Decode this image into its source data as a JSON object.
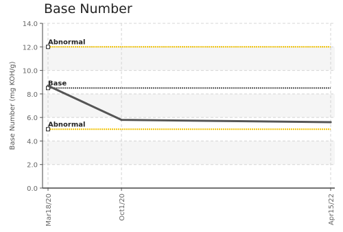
{
  "chart_data": {
    "type": "line",
    "title": "Base Number",
    "ylabel": "Base Number (mg KOH/g)",
    "xlabel": "",
    "ylim": [
      0,
      14
    ],
    "yticks": [
      "0.0",
      "2.0",
      "4.0",
      "6.0",
      "8.0",
      "10.0",
      "12.0",
      "14.0"
    ],
    "grid": true,
    "categories": [
      "Mar18/20",
      "Oct1/20",
      "Apr15/22"
    ],
    "x": [
      "2020-03-18",
      "2020-10-01",
      "2022-04-15"
    ],
    "series": [
      {
        "values": [
          8.7,
          5.8,
          5.6
        ],
        "color": "#555555"
      }
    ],
    "reference_lines": [
      {
        "label": "Abnormal",
        "value": 12.0,
        "color": "#f2c200"
      },
      {
        "label": "Base",
        "value": 8.5,
        "color": "#555555"
      },
      {
        "label": "Abnormal",
        "value": 5.0,
        "color": "#f2c200"
      }
    ]
  }
}
